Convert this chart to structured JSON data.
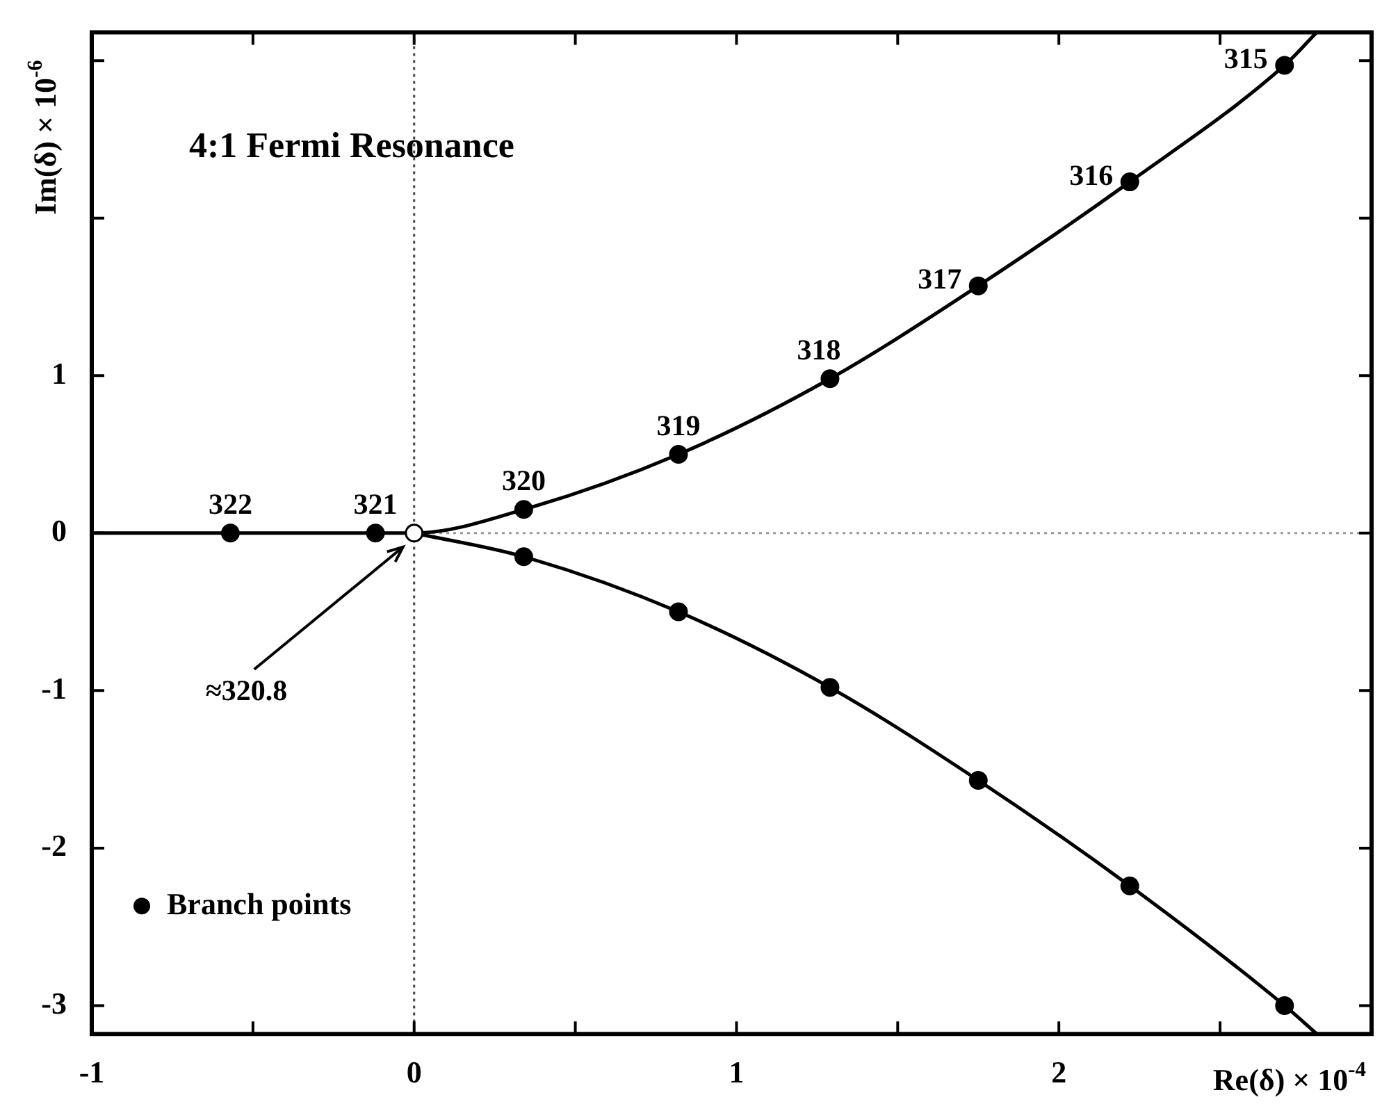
{
  "chart_data": {
    "type": "scatter",
    "title": "4:1 Fermi Resonance",
    "xlabel": "Re(δ) × 10$^{-4}$",
    "ylabel": "Im(δ) × 10$^{-6}$",
    "xlim": [
      -1,
      2.97
    ],
    "ylim": [
      -3.18,
      3.18
    ],
    "xticks": [
      -1,
      {
        "value": -0.5,
        "label": null
      },
      0,
      {
        "value": 0.5,
        "label": null
      },
      1,
      {
        "value": 1.5,
        "label": null
      },
      2,
      {
        "value": 2.5,
        "label": null
      }
    ],
    "yticks": [
      -3,
      -2,
      -1,
      0,
      1,
      {
        "value": 2,
        "label": null
      },
      {
        "value": 3,
        "label": null
      }
    ],
    "legend": "bottom left",
    "series": [
      {
        "type": "line",
        "marker": "none",
        "color": "#000000",
        "x": [
          -1,
          -0.57,
          -0.12,
          0,
          0.34,
          0.82,
          1.29,
          1.75,
          2.22,
          2.7,
          2.8
        ],
        "values": [
          0,
          0,
          0,
          0,
          0.15,
          0.5,
          0.98,
          1.57,
          2.23,
          2.97,
          3.18
        ]
      },
      {
        "type": "line",
        "marker": "none",
        "color": "#000000",
        "x": [
          0,
          0.34,
          0.82,
          1.29,
          1.75,
          2.22,
          2.7,
          2.8
        ],
        "values": [
          0,
          -0.15,
          -0.5,
          -0.98,
          -1.57,
          -2.24,
          -3.0,
          -3.18
        ]
      },
      {
        "type": "scatter",
        "marker": "circle",
        "name": "Branch points",
        "color": "#000000",
        "x": [
          -0.57,
          -0.12,
          0.34,
          0.82,
          1.29,
          1.75,
          2.22,
          2.7,
          0.34,
          0.82,
          1.29,
          1.75,
          2.22,
          2.7
        ],
        "values": [
          0,
          0,
          0.15,
          0.5,
          0.98,
          1.57,
          2.23,
          2.97,
          -0.15,
          -0.5,
          -0.98,
          -1.57,
          -2.24,
          -3.0
        ]
      },
      {
        "type": "scatter",
        "marker": "circle",
        "color": "#ffffff",
        "x": [
          0
        ],
        "values": [
          0
        ]
      }
    ],
    "ref_lines": [
      {
        "axis": "x",
        "value": 0,
        "color": "#444444",
        "line_style": "dotted"
      },
      {
        "axis": "y",
        "value": 0,
        "color": "#999999",
        "line_style": "dotted"
      }
    ],
    "annotations": [
      {
        "text": "322",
        "x": -0.57,
        "y": 0
      },
      {
        "text": "321",
        "x": -0.12,
        "y": 0
      },
      {
        "text": "320",
        "x": 0.34,
        "y": 0.15
      },
      {
        "text": "319",
        "x": 0.82,
        "y": 0.5
      },
      {
        "text": "318",
        "x": 1.29,
        "y": 0.98
      },
      {
        "text": "317",
        "x": 1.75,
        "y": 1.57
      },
      {
        "text": "316",
        "x": 2.22,
        "y": 2.23
      },
      {
        "text": "315",
        "x": 2.7,
        "y": 2.97
      },
      "≈320.8"
    ]
  }
}
